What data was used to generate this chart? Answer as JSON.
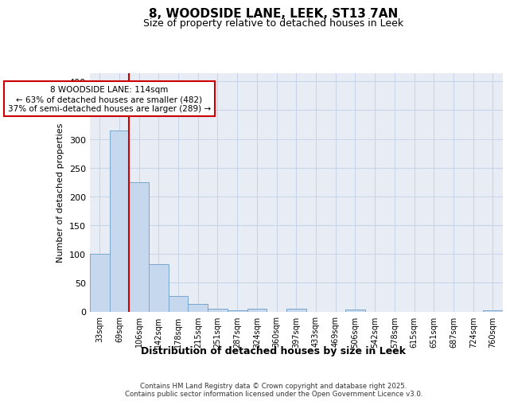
{
  "title1": "8, WOODSIDE LANE, LEEK, ST13 7AN",
  "title2": "Size of property relative to detached houses in Leek",
  "xlabel": "Distribution of detached houses by size in Leek",
  "ylabel": "Number of detached properties",
  "categories": [
    "33sqm",
    "69sqm",
    "106sqm",
    "142sqm",
    "178sqm",
    "215sqm",
    "251sqm",
    "287sqm",
    "324sqm",
    "360sqm",
    "397sqm",
    "433sqm",
    "469sqm",
    "506sqm",
    "542sqm",
    "578sqm",
    "615sqm",
    "651sqm",
    "687sqm",
    "724sqm",
    "760sqm"
  ],
  "values": [
    100,
    315,
    225,
    82,
    27,
    13,
    5,
    2,
    5,
    0,
    5,
    0,
    0,
    3,
    0,
    0,
    0,
    0,
    0,
    0,
    2
  ],
  "bar_color": "#c5d8ee",
  "bar_edge_color": "#7aa6cc",
  "grid_color": "#c8d4e8",
  "background_color": "#e8edf5",
  "vline_color": "#cc0000",
  "vline_x": 2.5,
  "annotation_line1": "8 WOODSIDE LANE: 114sqm",
  "annotation_line2": "← 63% of detached houses are smaller (482)",
  "annotation_line3": "37% of semi-detached houses are larger (289) →",
  "annotation_box_edgecolor": "#cc0000",
  "annotation_box_facecolor": "white",
  "footer_text": "Contains HM Land Registry data © Crown copyright and database right 2025.\nContains public sector information licensed under the Open Government Licence v3.0.",
  "ylim": [
    0,
    415
  ],
  "yticks": [
    0,
    50,
    100,
    150,
    200,
    250,
    300,
    350,
    400
  ]
}
